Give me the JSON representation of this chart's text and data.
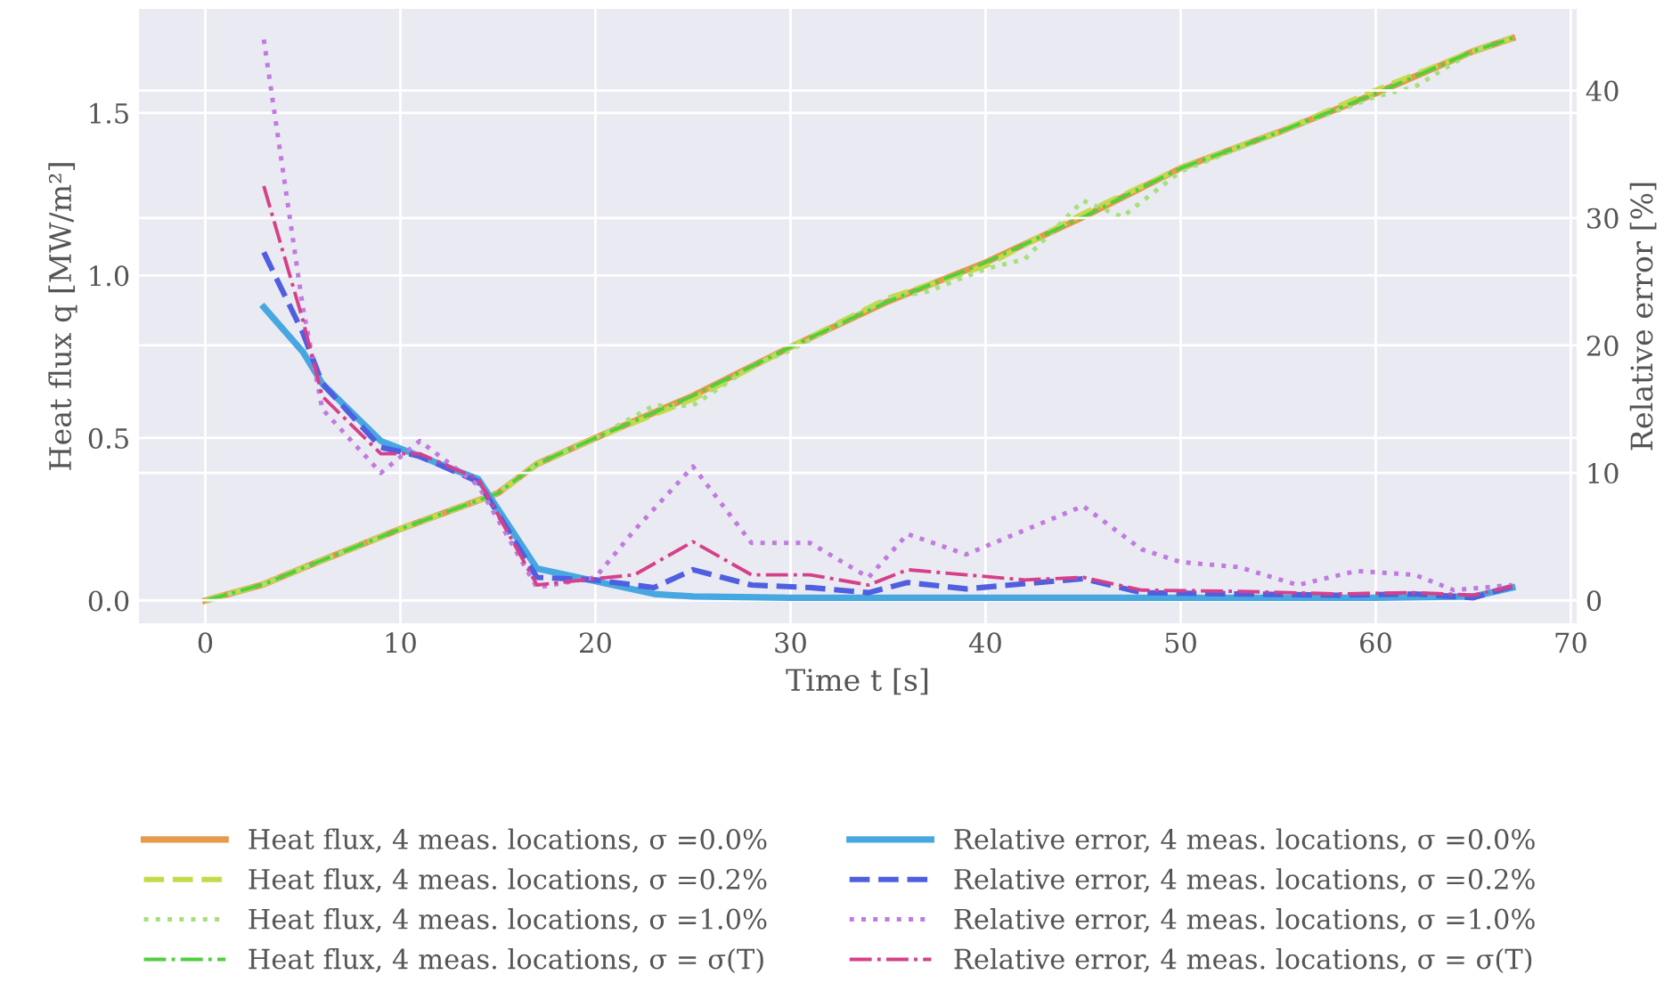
{
  "chart_data": {
    "type": "line",
    "xlabel": "Time t [s]",
    "ylabel": "Heat flux q [MW/m²]",
    "y2label": "Relative error [%]",
    "xlim": [
      -3.4,
      70.3
    ],
    "xticks": [
      0,
      10,
      20,
      30,
      40,
      50,
      60,
      70
    ],
    "ylim": [
      -0.07,
      1.82
    ],
    "yticks": [
      {
        "value": 0,
        "label": "0.0"
      },
      {
        "value": 0.5,
        "label": "0.5"
      },
      {
        "value": 1,
        "label": "1.0"
      },
      {
        "value": 1.5,
        "label": "1.5"
      }
    ],
    "y2lim": [
      -1.8,
      46.4
    ],
    "y2ticks": [
      0,
      10,
      20,
      30,
      40
    ],
    "grid": true,
    "legend": "bottom",
    "series": [
      {
        "name": "Heat flux, 4 meas. locations, σ =0.0%",
        "color": "#e69a4a",
        "line_style": "solid",
        "x": [
          0,
          3,
          5,
          10,
          15,
          17,
          20,
          25,
          30,
          35,
          40,
          45,
          50,
          55,
          60,
          65,
          67
        ],
        "values": [
          0,
          0.05,
          0.1,
          0.22,
          0.33,
          0.42,
          0.5,
          0.63,
          0.78,
          0.92,
          1.04,
          1.18,
          1.33,
          1.44,
          1.56,
          1.69,
          1.73
        ]
      },
      {
        "name": "Heat flux, 4 meas. locations, σ =0.2%",
        "color": "#c6d94a",
        "line_style": "dashed",
        "x": [
          0,
          3,
          5,
          10,
          15,
          17,
          20,
          25,
          30,
          35,
          40,
          45,
          50,
          55,
          60,
          65,
          67
        ],
        "values": [
          0,
          0.05,
          0.1,
          0.22,
          0.33,
          0.42,
          0.5,
          0.62,
          0.78,
          0.93,
          1.03,
          1.19,
          1.33,
          1.44,
          1.57,
          1.69,
          1.73
        ]
      },
      {
        "name": "Heat flux, 4 meas. locations, σ =1.0%",
        "color": "#a6e07a",
        "line_style": "dotted",
        "x": [
          0,
          3,
          5,
          10,
          15,
          17,
          20,
          23,
          25,
          28,
          30,
          35,
          37,
          40,
          42,
          45,
          47,
          50,
          55,
          60,
          62,
          65,
          67
        ],
        "values": [
          0,
          0.05,
          0.1,
          0.22,
          0.33,
          0.42,
          0.5,
          0.6,
          0.6,
          0.72,
          0.77,
          0.93,
          0.95,
          1.02,
          1.05,
          1.23,
          1.18,
          1.32,
          1.44,
          1.55,
          1.58,
          1.69,
          1.73
        ]
      },
      {
        "name": "Heat flux, 4 meas. locations, σ = σ(T)",
        "color": "#4fcf3f",
        "line_style": "dashdot",
        "x": [
          0,
          3,
          5,
          10,
          15,
          17,
          20,
          25,
          30,
          35,
          40,
          45,
          50,
          55,
          60,
          65,
          67
        ],
        "values": [
          0,
          0.05,
          0.1,
          0.22,
          0.33,
          0.42,
          0.5,
          0.63,
          0.78,
          0.92,
          1.04,
          1.18,
          1.33,
          1.44,
          1.56,
          1.69,
          1.73
        ]
      },
      {
        "name": "Relative error, 4 meas. locations, σ =0.0%",
        "color": "#47a7e0",
        "line_style": "solid",
        "axis": "y2",
        "x": [
          3,
          5,
          6,
          9,
          11,
          14,
          17,
          20,
          23,
          25,
          30,
          40,
          50,
          60,
          65,
          67
        ],
        "values": [
          23,
          19.5,
          17,
          12.5,
          11.3,
          9.5,
          2.5,
          1.5,
          0.5,
          0.3,
          0.2,
          0.2,
          0.2,
          0.2,
          0.3,
          1.0
        ]
      },
      {
        "name": "Relative error, 4 meas. locations, σ =0.2%",
        "color": "#4f5fe0",
        "line_style": "dashed",
        "axis": "y2",
        "x": [
          3,
          5,
          6,
          9,
          11,
          14,
          17,
          20,
          23,
          25,
          28,
          31,
          34,
          36,
          39,
          45,
          48,
          53,
          58,
          62,
          65,
          67
        ],
        "values": [
          27.3,
          21,
          17,
          12,
          11.3,
          9.3,
          1.8,
          1.6,
          1,
          2.4,
          1.2,
          1,
          0.6,
          1.4,
          0.9,
          1.7,
          0.6,
          0.5,
          0.4,
          0.5,
          0.2,
          1.1
        ]
      },
      {
        "name": "Relative error, 4 meas. locations, σ =1.0%",
        "color": "#c07ae0",
        "line_style": "dotted",
        "axis": "y2",
        "x": [
          3,
          5,
          6,
          9,
          11,
          14,
          17,
          20,
          22,
          25,
          28,
          31,
          34,
          36,
          39,
          45,
          48,
          50,
          53,
          56,
          59,
          62,
          64,
          67
        ],
        "values": [
          44,
          23,
          15,
          10,
          12.5,
          9,
          1,
          1.8,
          5.5,
          10.5,
          4.5,
          4.5,
          1.8,
          5.2,
          3.6,
          7.4,
          4,
          3,
          2.6,
          1.2,
          2.3,
          2,
          0.8,
          1.2
        ]
      },
      {
        "name": "Relative error, 4 meas. locations, σ = σ(T)",
        "color": "#d6408a",
        "line_style": "dashdot",
        "axis": "y2",
        "x": [
          3,
          5,
          6,
          9,
          11,
          14,
          17,
          20,
          22,
          25,
          28,
          31,
          34,
          36,
          39,
          42,
          45,
          48,
          53,
          58,
          62,
          65,
          67
        ],
        "values": [
          32.5,
          22,
          16,
          11.5,
          11.5,
          9.5,
          1.2,
          1.7,
          2,
          4.6,
          2,
          2,
          1.2,
          2.4,
          2,
          1.6,
          1.8,
          0.8,
          0.7,
          0.5,
          0.6,
          0.4,
          1.1
        ]
      }
    ]
  }
}
